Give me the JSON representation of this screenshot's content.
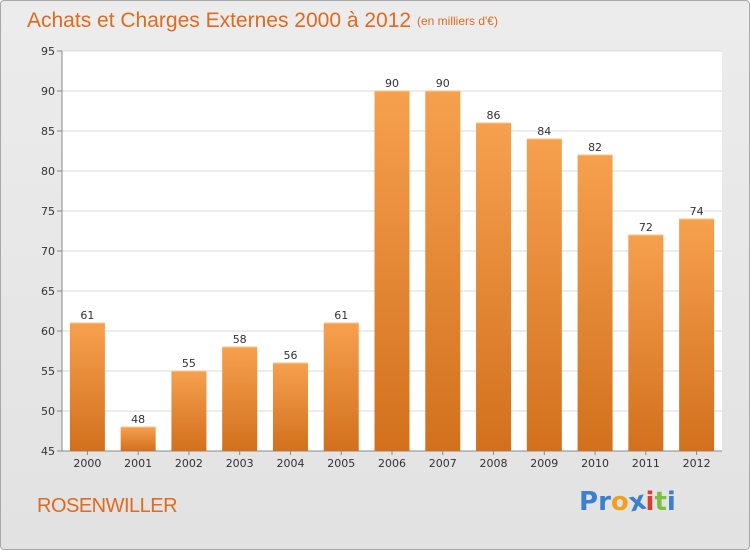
{
  "chart_data": {
    "type": "bar",
    "title": "Achats et Charges Externes 2000 à 2012",
    "subtitle": "(en milliers d'€)",
    "categories": [
      "2000",
      "2001",
      "2002",
      "2003",
      "2004",
      "2005",
      "2006",
      "2007",
      "2008",
      "2009",
      "2010",
      "2011",
      "2012"
    ],
    "values": [
      61,
      48,
      55,
      58,
      56,
      61,
      90,
      90,
      86,
      84,
      82,
      72,
      74
    ],
    "ylim": [
      45,
      95
    ],
    "yticks": [
      45,
      50,
      55,
      60,
      65,
      70,
      75,
      80,
      85,
      90,
      95
    ],
    "grid": true,
    "bar_color_top": "#f6a04e",
    "bar_color_bottom": "#d2701d"
  },
  "town_name": "ROSENWILLER",
  "logo": {
    "letters": [
      "P",
      "r",
      "o",
      "x",
      "i",
      "t",
      "i"
    ],
    "colors": [
      "#3a7fd0",
      "#3a7fd0",
      "#f0a020",
      "#3a7fd0",
      "#e03a2a",
      "#7ac043",
      "#3a7fd0"
    ]
  }
}
